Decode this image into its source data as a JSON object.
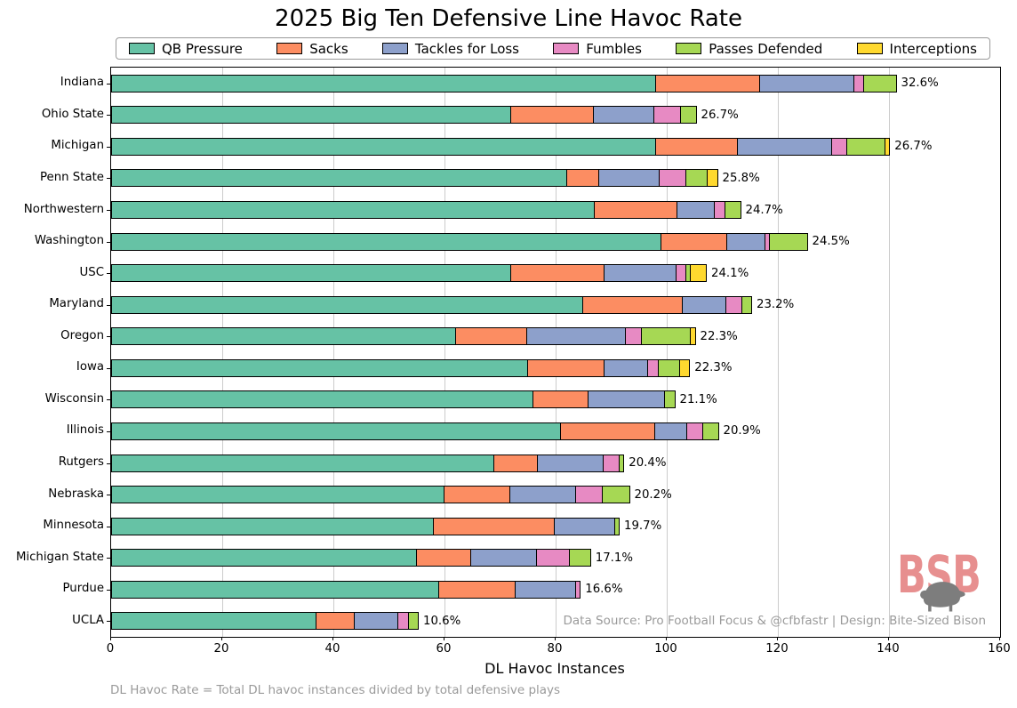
{
  "title": "2025 Big Ten Defensive Line Havoc Rate",
  "chart_data": {
    "type": "bar",
    "stacked": true,
    "orientation": "horizontal",
    "title": "2025 Big Ten Defensive Line Havoc Rate",
    "xlabel": "DL Havoc Instances",
    "xlim": [
      0,
      160
    ],
    "xticks": [
      0,
      20,
      40,
      60,
      80,
      100,
      120,
      140,
      160
    ],
    "grid": "vertical",
    "legend_position": "top",
    "bar_edge_color": "#000000",
    "grid_color": "#cccccc",
    "series_names": [
      "QB Pressure",
      "Sacks",
      "Tackles for Loss",
      "Fumbles",
      "Passes Defended",
      "Interceptions"
    ],
    "series_colors": [
      "#66c2a5",
      "#fc8d62",
      "#8da0cb",
      "#e78ac3",
      "#a6d854",
      "#ffd92f"
    ],
    "rows": [
      {
        "team": "Indiana",
        "values": [
          98,
          19,
          17,
          2,
          6,
          0
        ],
        "total": 142,
        "havoc_rate": "32.6%"
      },
      {
        "team": "Ohio State",
        "values": [
          72,
          15,
          11,
          5,
          3,
          0
        ],
        "total": 106,
        "havoc_rate": "26.7%"
      },
      {
        "team": "Michigan",
        "values": [
          98,
          15,
          17,
          3,
          7,
          1
        ],
        "total": 141,
        "havoc_rate": "26.7%"
      },
      {
        "team": "Penn State",
        "values": [
          82,
          6,
          11,
          5,
          4,
          2
        ],
        "total": 110,
        "havoc_rate": "25.8%"
      },
      {
        "team": "Northwestern",
        "values": [
          87,
          15,
          7,
          2,
          3,
          0
        ],
        "total": 114,
        "havoc_rate": "24.7%"
      },
      {
        "team": "Washington",
        "values": [
          99,
          12,
          7,
          1,
          7,
          0
        ],
        "total": 126,
        "havoc_rate": "24.5%"
      },
      {
        "team": "USC",
        "values": [
          72,
          17,
          13,
          2,
          1,
          3
        ],
        "total": 108,
        "havoc_rate": "24.1%"
      },
      {
        "team": "Maryland",
        "values": [
          85,
          18,
          8,
          3,
          2,
          0
        ],
        "total": 116,
        "havoc_rate": "23.2%"
      },
      {
        "team": "Oregon",
        "values": [
          62,
          13,
          18,
          3,
          9,
          1
        ],
        "total": 106,
        "havoc_rate": "22.3%"
      },
      {
        "team": "Iowa",
        "values": [
          75,
          14,
          8,
          2,
          4,
          2
        ],
        "total": 105,
        "havoc_rate": "22.3%"
      },
      {
        "team": "Wisconsin",
        "values": [
          76,
          10,
          14,
          0,
          2,
          0
        ],
        "total": 102,
        "havoc_rate": "21.1%"
      },
      {
        "team": "Illinois",
        "values": [
          81,
          17,
          6,
          3,
          3,
          0
        ],
        "total": 110,
        "havoc_rate": "20.9%"
      },
      {
        "team": "Rutgers",
        "values": [
          69,
          8,
          12,
          3,
          1,
          0
        ],
        "total": 93,
        "havoc_rate": "20.4%"
      },
      {
        "team": "Nebraska",
        "values": [
          60,
          12,
          12,
          5,
          5,
          0
        ],
        "total": 94,
        "havoc_rate": "20.2%"
      },
      {
        "team": "Minnesota",
        "values": [
          58,
          22,
          11,
          0,
          1,
          0
        ],
        "total": 92,
        "havoc_rate": "19.7%"
      },
      {
        "team": "Michigan State",
        "values": [
          55,
          10,
          12,
          6,
          4,
          0
        ],
        "total": 87,
        "havoc_rate": "17.1%"
      },
      {
        "team": "Purdue",
        "values": [
          59,
          14,
          11,
          1,
          0,
          0
        ],
        "total": 85,
        "havoc_rate": "16.6%"
      },
      {
        "team": "UCLA",
        "values": [
          37,
          7,
          8,
          2,
          2,
          0
        ],
        "total": 56,
        "havoc_rate": "10.6%"
      }
    ]
  },
  "footer": {
    "note": "DL Havoc Rate = Total DL havoc instances divided by total defensive plays",
    "source": "Data Source: Pro Football Focus & @cfbfastr | Design: Bite-Sized Bison"
  },
  "logo": {
    "text": "BSB",
    "color": "#e78f8f",
    "bison_color": "#7d7d7d"
  }
}
